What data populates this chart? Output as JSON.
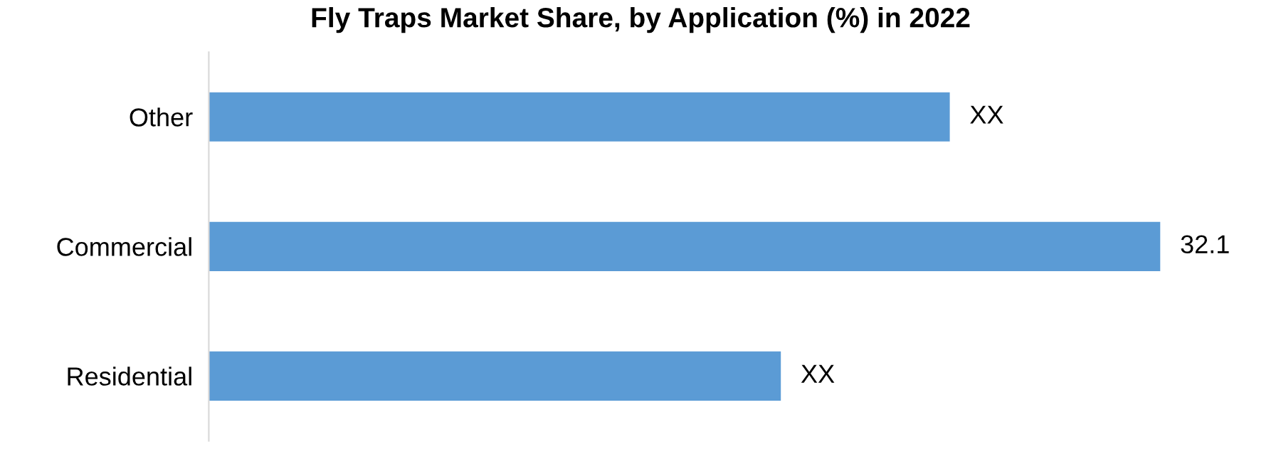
{
  "chart_data": {
    "type": "bar",
    "orientation": "horizontal",
    "title": "Fly Traps Market Share, by Application (%) in 2022",
    "categories": [
      "Other",
      "Commercial",
      "Residential"
    ],
    "values": [
      25.0,
      32.1,
      19.3
    ],
    "value_labels": [
      "XX",
      "32.1",
      "XX"
    ],
    "color": "#5b9bd5",
    "grid": false,
    "legend": false
  }
}
